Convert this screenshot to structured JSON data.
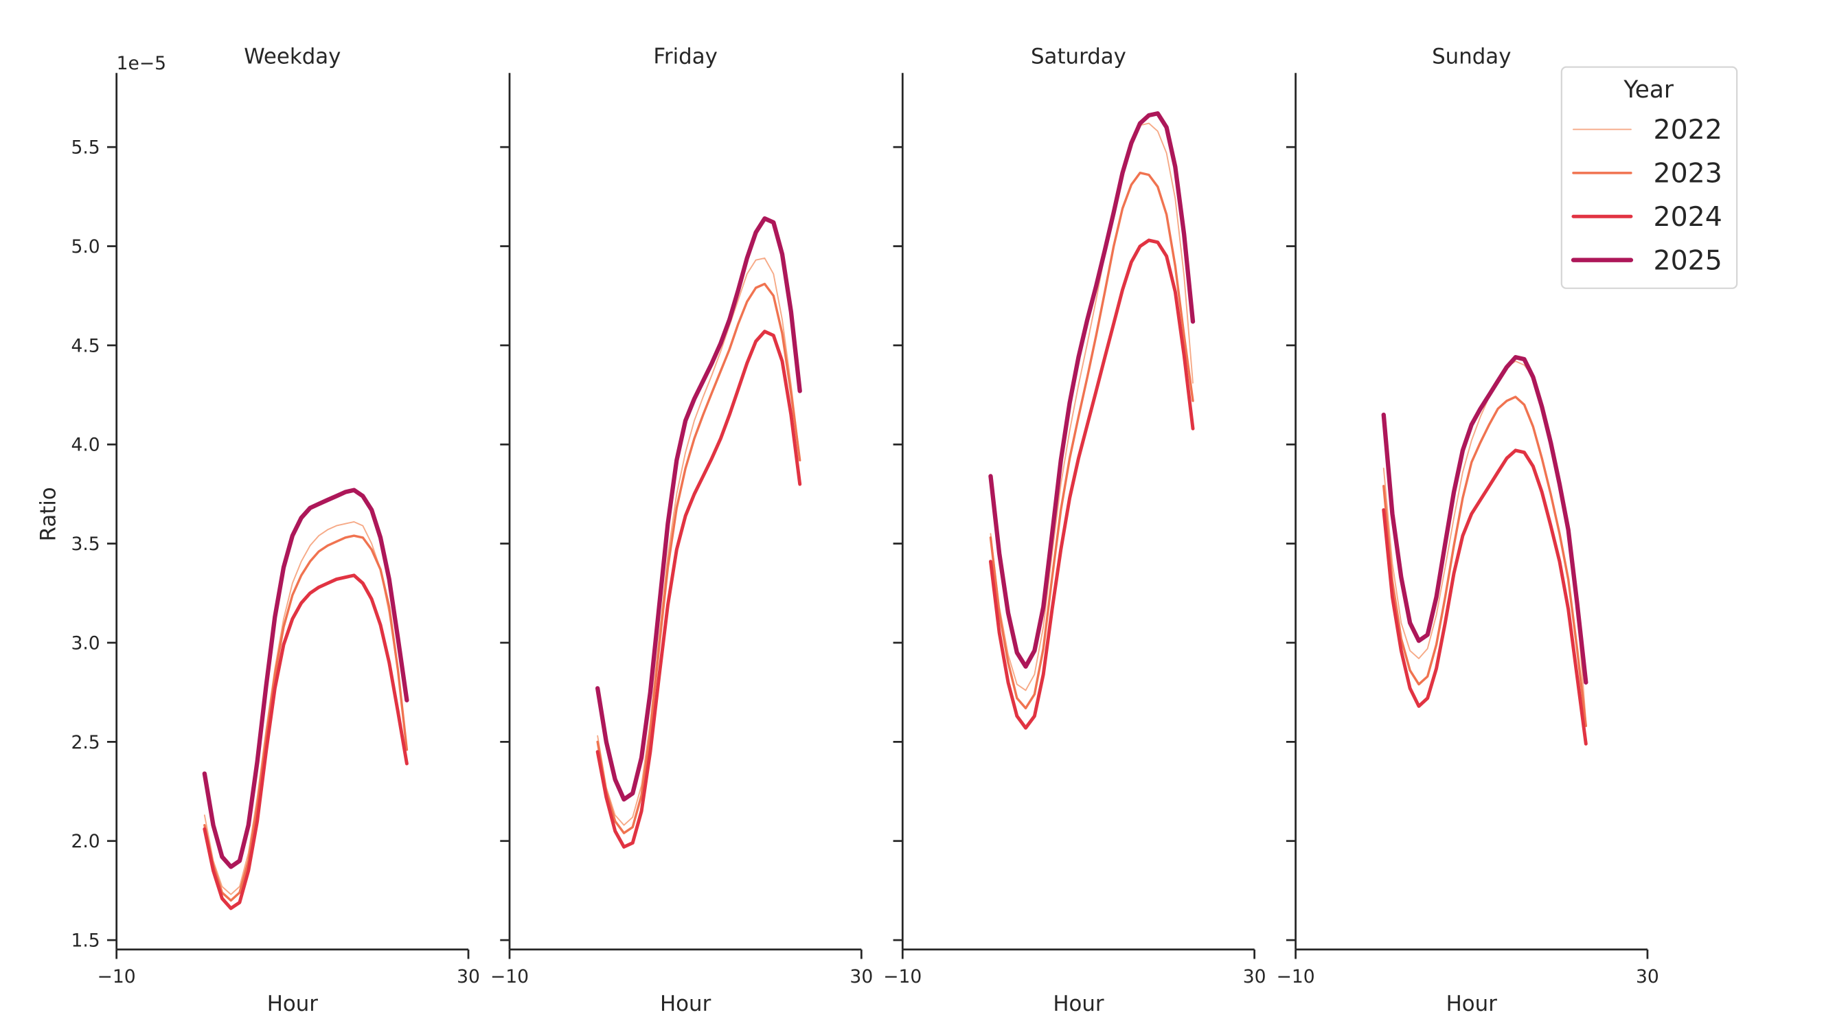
{
  "chart_data": {
    "type": "line",
    "ylabel": "Ratio",
    "y_offset_label": "1e−5",
    "ylim": [
      1.45,
      5.87
    ],
    "yticks": [
      "1.5",
      "2.0",
      "2.5",
      "3.0",
      "3.5",
      "4.0",
      "4.5",
      "5.0",
      "5.5"
    ],
    "ytick_values": [
      1.5,
      2.0,
      2.5,
      3.0,
      3.5,
      4.0,
      4.5,
      5.0,
      5.5
    ],
    "xlim": [
      -10,
      30
    ],
    "xticks": [
      "−10",
      "30"
    ],
    "xtick_values": [
      -10,
      30
    ],
    "grid": false,
    "legend": {
      "title": "Year",
      "placement": "top-right",
      "entries": [
        "2022",
        "2023",
        "2024",
        "2025"
      ]
    },
    "colors": {
      "2022": "#f6a986",
      "2023": "#f07350",
      "2024": "#e13342",
      "2025": "#ad1759"
    },
    "x": [
      0,
      1,
      2,
      3,
      4,
      5,
      6,
      7,
      8,
      9,
      10,
      11,
      12,
      13,
      14,
      15,
      16,
      17,
      18,
      19,
      20,
      21,
      22,
      23
    ],
    "panels": [
      {
        "title": "Weekday",
        "xlabel": "Hour",
        "series": [
          {
            "name": "2022",
            "values": [
              2.13,
              1.9,
              1.77,
              1.73,
              1.77,
              1.94,
              2.22,
              2.56,
              2.87,
              3.12,
              3.3,
              3.41,
              3.49,
              3.54,
              3.57,
              3.59,
              3.6,
              3.61,
              3.59,
              3.5,
              3.37,
              3.15,
              2.85,
              2.46
            ]
          },
          {
            "name": "2023",
            "values": [
              2.08,
              1.88,
              1.74,
              1.7,
              1.74,
              1.9,
              2.18,
              2.52,
              2.84,
              3.08,
              3.24,
              3.34,
              3.41,
              3.46,
              3.49,
              3.51,
              3.53,
              3.54,
              3.53,
              3.47,
              3.37,
              3.18,
              2.86,
              2.46
            ]
          },
          {
            "name": "2024",
            "values": [
              2.06,
              1.85,
              1.71,
              1.66,
              1.69,
              1.85,
              2.1,
              2.45,
              2.77,
              2.99,
              3.12,
              3.2,
              3.25,
              3.28,
              3.3,
              3.32,
              3.33,
              3.34,
              3.3,
              3.22,
              3.09,
              2.9,
              2.65,
              2.39
            ]
          },
          {
            "name": "2025",
            "values": [
              2.34,
              2.08,
              1.92,
              1.87,
              1.9,
              2.08,
              2.4,
              2.78,
              3.13,
              3.38,
              3.54,
              3.63,
              3.68,
              3.7,
              3.72,
              3.74,
              3.76,
              3.77,
              3.74,
              3.67,
              3.53,
              3.32,
              3.02,
              2.71
            ]
          }
        ]
      },
      {
        "title": "Friday",
        "xlabel": "Hour",
        "series": [
          {
            "name": "2022",
            "values": [
              2.53,
              2.27,
              2.13,
              2.08,
              2.12,
              2.28,
              2.6,
              3.03,
              3.44,
              3.75,
              3.96,
              4.12,
              4.24,
              4.35,
              4.47,
              4.6,
              4.73,
              4.86,
              4.93,
              4.94,
              4.86,
              4.63,
              4.3,
              3.93
            ]
          },
          {
            "name": "2023",
            "values": [
              2.5,
              2.25,
              2.1,
              2.04,
              2.07,
              2.23,
              2.55,
              2.98,
              3.38,
              3.68,
              3.88,
              4.03,
              4.15,
              4.26,
              4.37,
              4.48,
              4.61,
              4.72,
              4.79,
              4.81,
              4.75,
              4.56,
              4.26,
              3.92
            ]
          },
          {
            "name": "2024",
            "values": [
              2.45,
              2.22,
              2.05,
              1.97,
              1.99,
              2.15,
              2.45,
              2.83,
              3.19,
              3.47,
              3.64,
              3.75,
              3.84,
              3.93,
              4.03,
              4.15,
              4.28,
              4.41,
              4.52,
              4.57,
              4.55,
              4.42,
              4.15,
              3.8
            ]
          },
          {
            "name": "2025",
            "values": [
              2.77,
              2.5,
              2.31,
              2.21,
              2.24,
              2.42,
              2.75,
              3.18,
              3.6,
              3.92,
              4.12,
              4.23,
              4.32,
              4.41,
              4.51,
              4.63,
              4.78,
              4.94,
              5.07,
              5.14,
              5.12,
              4.96,
              4.67,
              4.27
            ]
          }
        ]
      },
      {
        "title": "Saturday",
        "xlabel": "Hour",
        "series": [
          {
            "name": "2022",
            "values": [
              3.55,
              3.18,
              2.94,
              2.79,
              2.76,
              2.84,
              3.08,
              3.45,
              3.8,
              4.07,
              4.3,
              4.51,
              4.73,
              4.96,
              5.18,
              5.39,
              5.54,
              5.61,
              5.62,
              5.58,
              5.47,
              5.24,
              4.85,
              4.31
            ]
          },
          {
            "name": "2023",
            "values": [
              3.53,
              3.15,
              2.9,
              2.72,
              2.67,
              2.74,
              2.97,
              3.33,
              3.67,
              3.93,
              4.14,
              4.34,
              4.55,
              4.77,
              5.0,
              5.19,
              5.31,
              5.37,
              5.36,
              5.3,
              5.16,
              4.9,
              4.55,
              4.22
            ]
          },
          {
            "name": "2024",
            "values": [
              3.41,
              3.05,
              2.8,
              2.63,
              2.57,
              2.63,
              2.84,
              3.17,
              3.47,
              3.73,
              3.93,
              4.1,
              4.27,
              4.44,
              4.61,
              4.78,
              4.92,
              5.0,
              5.03,
              5.02,
              4.95,
              4.77,
              4.45,
              4.08
            ]
          },
          {
            "name": "2025",
            "values": [
              3.84,
              3.45,
              3.15,
              2.95,
              2.88,
              2.96,
              3.18,
              3.55,
              3.92,
              4.21,
              4.44,
              4.63,
              4.8,
              4.98,
              5.17,
              5.37,
              5.52,
              5.62,
              5.66,
              5.67,
              5.6,
              5.4,
              5.06,
              4.62
            ]
          }
        ]
      },
      {
        "title": "Sunday",
        "xlabel": "Hour",
        "series": [
          {
            "name": "2022",
            "values": [
              3.88,
              3.4,
              3.1,
              2.96,
              2.92,
              2.97,
              3.14,
              3.38,
              3.63,
              3.86,
              4.02,
              4.14,
              4.24,
              4.32,
              4.39,
              4.42,
              4.4,
              4.34,
              4.2,
              4.02,
              3.8,
              3.55,
              3.18,
              2.6
            ]
          },
          {
            "name": "2023",
            "values": [
              3.79,
              3.31,
              3.02,
              2.86,
              2.79,
              2.83,
              2.99,
              3.23,
              3.49,
              3.73,
              3.91,
              4.01,
              4.1,
              4.18,
              4.22,
              4.24,
              4.2,
              4.09,
              3.93,
              3.75,
              3.55,
              3.32,
              2.97,
              2.58
            ]
          },
          {
            "name": "2024",
            "values": [
              3.67,
              3.23,
              2.96,
              2.77,
              2.68,
              2.72,
              2.87,
              3.1,
              3.35,
              3.54,
              3.65,
              3.72,
              3.79,
              3.86,
              3.93,
              3.97,
              3.96,
              3.89,
              3.76,
              3.59,
              3.41,
              3.17,
              2.83,
              2.49
            ]
          },
          {
            "name": "2025",
            "values": [
              4.15,
              3.65,
              3.33,
              3.1,
              3.01,
              3.04,
              3.23,
              3.5,
              3.76,
              3.97,
              4.1,
              4.18,
              4.25,
              4.32,
              4.39,
              4.44,
              4.43,
              4.34,
              4.19,
              4.01,
              3.8,
              3.57,
              3.2,
              2.8
            ]
          }
        ]
      }
    ]
  }
}
